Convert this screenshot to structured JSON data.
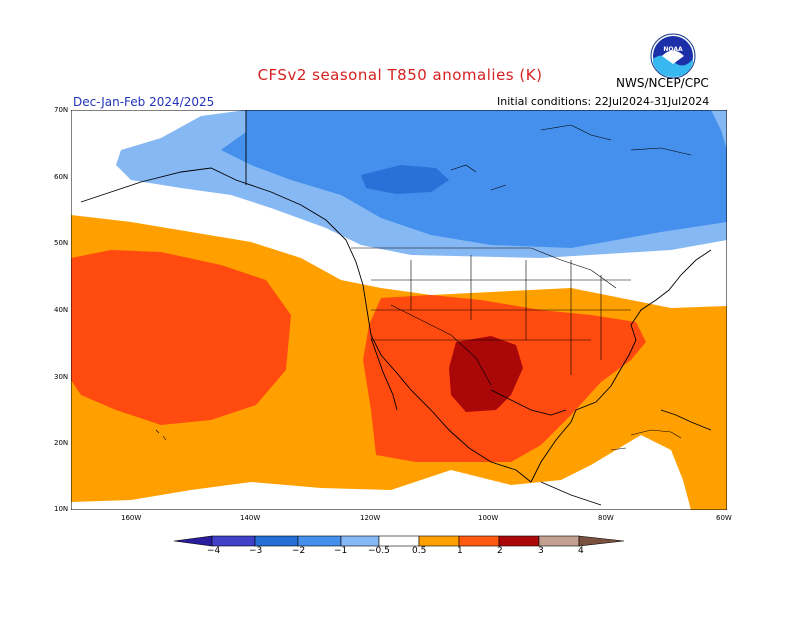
{
  "title": "CFSv2 seasonal T850 anomalies (K)",
  "season": "Dec-Jan-Feb 2024/2025",
  "initial_conditions": "Initial conditions: 22Jul2024-31Jul2024",
  "agency": "NWS/NCEP/CPC",
  "logo_text": "NOAA",
  "lat_labels": [
    "70N",
    "60N",
    "50N",
    "40N",
    "30N",
    "20N",
    "10N"
  ],
  "lon_labels": [
    "160W",
    "140W",
    "120W",
    "100W",
    "80W",
    "60W"
  ],
  "colorbar_labels": [
    "−4",
    "−3",
    "−2",
    "−1",
    "−0.5",
    "0.5",
    "1",
    "2",
    "3",
    "4"
  ],
  "colorbar_colors": [
    "#2a1c9e",
    "#4040c8",
    "#2470d8",
    "#4490ec",
    "#86b8f4",
    "#ffffff",
    "#ffa000",
    "#ff5a10",
    "#e42a0a",
    "#aa0808",
    "#c4a090",
    "#7a5040"
  ],
  "colors": {
    "anom_lt_neg1": "#4590ec",
    "anom_lt_neg2": "#2970d8",
    "anom_neg05": "#86b8f4",
    "anom_pos05": "#ffa000",
    "anom_pos1": "#ff4a10",
    "anom_pos2": "#aa0808"
  }
}
